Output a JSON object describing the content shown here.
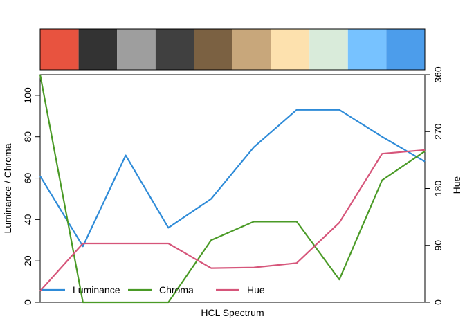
{
  "chart_data": {
    "type": "line",
    "xlabel": "HCL Spectrum",
    "ylabel_left": "Luminance / Chroma",
    "ylabel_right": "Hue",
    "ylim_left": [
      0,
      110
    ],
    "ylim_right": [
      0,
      360
    ],
    "yticks_left": [
      "0",
      "20",
      "40",
      "60",
      "80",
      "100"
    ],
    "yticks_right": [
      "0",
      "90",
      "180",
      "270",
      "360"
    ],
    "swatches": [
      "#E8533F",
      "#333333",
      "#9E9E9E",
      "#404040",
      "#7B6142",
      "#C8A77B",
      "#FDE1AE",
      "#D9EBDA",
      "#77C2FF",
      "#4C9DEB"
    ],
    "series": [
      {
        "name": "Luminance",
        "axis": "left",
        "color": "#2E8BD8",
        "values": [
          61,
          27,
          71,
          36,
          50,
          75,
          93,
          93,
          80,
          68
        ]
      },
      {
        "name": "Chroma",
        "axis": "left",
        "color": "#4A9A26",
        "values": [
          110,
          0,
          0,
          0,
          30,
          39,
          39,
          11,
          59,
          73
        ]
      },
      {
        "name": "Hue",
        "axis": "right",
        "color": "#D6557A",
        "values": [
          18,
          93,
          93,
          93,
          54,
          55,
          62,
          126,
          235,
          241
        ]
      }
    ],
    "legend": {
      "position": "bottom-left"
    },
    "grid": false
  }
}
